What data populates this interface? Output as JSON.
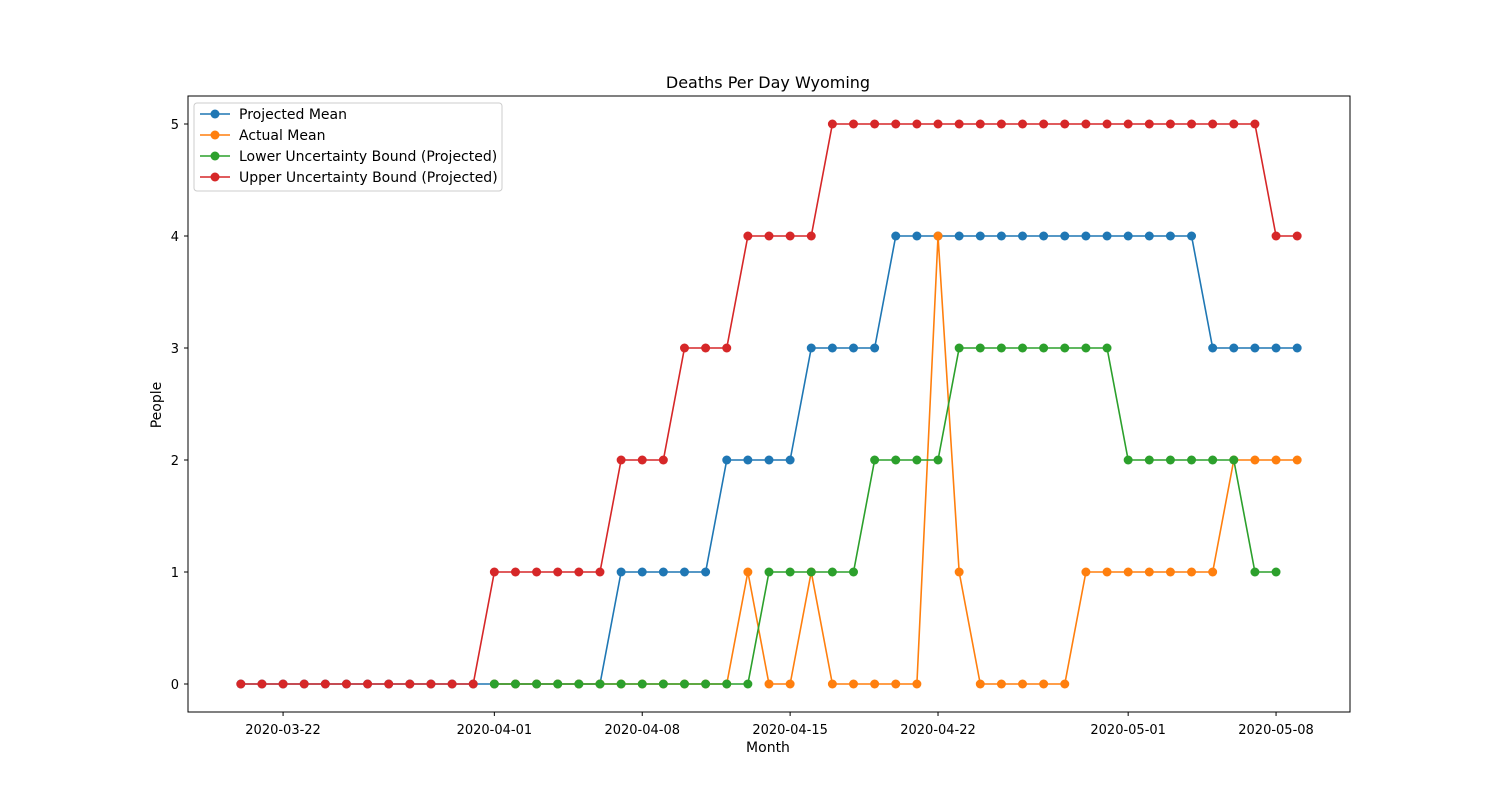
{
  "chart_data": {
    "type": "line",
    "title": "Deaths Per Day Wyoming",
    "xlabel": "Month",
    "ylabel": "People",
    "x_start": "2020-03-20",
    "x_days_range": [
      -2.5,
      52.5
    ],
    "ylim": [
      -0.25,
      5.25
    ],
    "xticks": [
      {
        "day": 2,
        "label": "2020-03-22"
      },
      {
        "day": 12,
        "label": "2020-04-01"
      },
      {
        "day": 19,
        "label": "2020-04-08"
      },
      {
        "day": 26,
        "label": "2020-04-15"
      },
      {
        "day": 33,
        "label": "2020-04-22"
      },
      {
        "day": 42,
        "label": "2020-05-01"
      },
      {
        "day": 49,
        "label": "2020-05-08"
      }
    ],
    "yticks": [
      0,
      1,
      2,
      3,
      4,
      5
    ],
    "grid": false,
    "legend_position": "top-left",
    "series": [
      {
        "name": "Projected Mean",
        "color": "#1f77b4",
        "start_day": 0,
        "values": [
          0,
          0,
          0,
          0,
          0,
          0,
          0,
          0,
          0,
          0,
          0,
          0,
          0,
          0,
          0,
          0,
          0,
          0,
          1,
          1,
          1,
          1,
          1,
          2,
          2,
          2,
          2,
          3,
          3,
          3,
          3,
          4,
          4,
          4,
          4,
          4,
          4,
          4,
          4,
          4,
          4,
          4,
          4,
          4,
          4,
          4,
          3,
          3,
          3,
          3,
          3
        ]
      },
      {
        "name": "Actual Mean",
        "color": "#ff7f0e",
        "start_day": 12,
        "values": [
          0,
          0,
          0,
          0,
          0,
          0,
          0,
          0,
          0,
          0,
          0,
          0,
          1,
          0,
          0,
          1,
          0,
          0,
          0,
          0,
          0,
          4,
          1,
          0,
          0,
          0,
          0,
          0,
          1,
          1,
          1,
          1,
          1,
          1,
          1,
          2,
          2,
          2,
          2
        ]
      },
      {
        "name": "Lower Uncertainty Bound (Projected)",
        "color": "#2ca02c",
        "start_day": 12,
        "values": [
          0,
          0,
          0,
          0,
          0,
          0,
          0,
          0,
          0,
          0,
          0,
          0,
          0,
          1,
          1,
          1,
          1,
          1,
          2,
          2,
          2,
          2,
          3,
          3,
          3,
          3,
          3,
          3,
          3,
          3,
          2,
          2,
          2,
          2,
          2,
          2,
          1,
          1
        ]
      },
      {
        "name": "Upper Uncertainty Bound (Projected)",
        "color": "#d62728",
        "start_day": 0,
        "values": [
          0,
          0,
          0,
          0,
          0,
          0,
          0,
          0,
          0,
          0,
          0,
          0,
          1,
          1,
          1,
          1,
          1,
          1,
          2,
          2,
          2,
          3,
          3,
          3,
          4,
          4,
          4,
          4,
          5,
          5,
          5,
          5,
          5,
          5,
          5,
          5,
          5,
          5,
          5,
          5,
          5,
          5,
          5,
          5,
          5,
          5,
          5,
          5,
          5,
          4,
          4
        ]
      }
    ]
  }
}
